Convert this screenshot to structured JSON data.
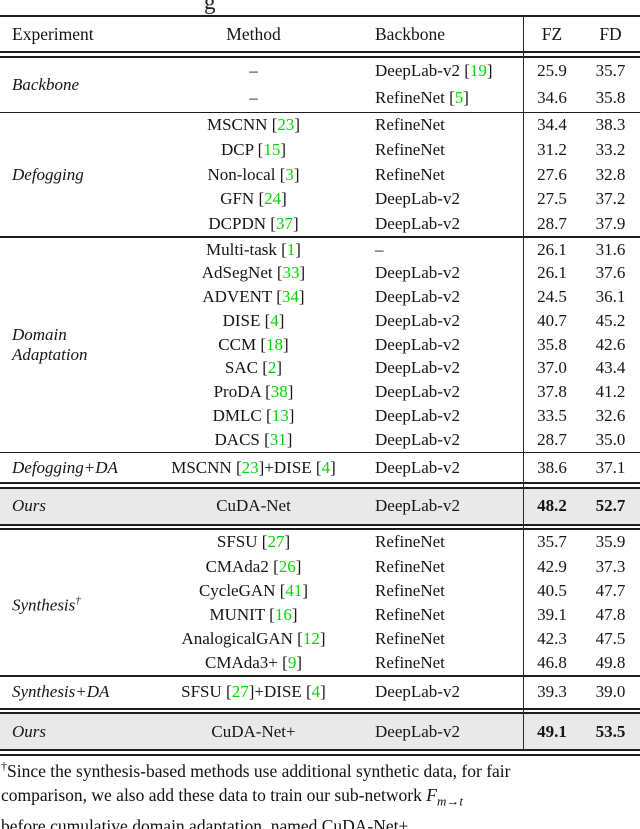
{
  "page": {
    "caption_fragment": "g"
  },
  "colors": {
    "cite_green": "#00d800",
    "highlight_row_bg": "#e9e9e9"
  },
  "table": {
    "header": {
      "experiment": "Experiment",
      "method": "Method",
      "backbone": "Backbone",
      "fz": "FZ",
      "fd": "FD"
    },
    "sections": [
      {
        "experiment": "Backbone",
        "rows": [
          {
            "method": "–",
            "backbone": "DeepLab-v2 [19]",
            "fz": "25.9",
            "fd": "35.7"
          },
          {
            "method": "–",
            "backbone": "RefineNet [5]",
            "fz": "34.6",
            "fd": "35.8"
          }
        ]
      },
      {
        "experiment": "Defogging",
        "rows": [
          {
            "method": "MSCNN [23]",
            "backbone": "RefineNet",
            "fz": "34.4",
            "fd": "38.3"
          },
          {
            "method": "DCP [15]",
            "backbone": "RefineNet",
            "fz": "31.2",
            "fd": "33.2"
          },
          {
            "method": "Non-local [3]",
            "backbone": "RefineNet",
            "fz": "27.6",
            "fd": "32.8"
          },
          {
            "method": "GFN [24]",
            "backbone": "DeepLab-v2",
            "fz": "27.5",
            "fd": "37.2"
          },
          {
            "method": "DCPDN [37]",
            "backbone": "DeepLab-v2",
            "fz": "28.7",
            "fd": "37.9"
          }
        ]
      },
      {
        "experiment": "Domain Adaptation",
        "experiment_lines": [
          "Domain",
          "Adaptation"
        ],
        "rows": [
          {
            "method": "Multi-task [1]",
            "backbone": "–",
            "fz": "26.1",
            "fd": "31.6"
          },
          {
            "method": "AdSegNet [33]",
            "backbone": "DeepLab-v2",
            "fz": "26.1",
            "fd": "37.6"
          },
          {
            "method": "ADVENT [34]",
            "backbone": "DeepLab-v2",
            "fz": "24.5",
            "fd": "36.1"
          },
          {
            "method": "DISE [4]",
            "backbone": "DeepLab-v2",
            "fz": "40.7",
            "fd": "45.2"
          },
          {
            "method": "CCM [18]",
            "backbone": "DeepLab-v2",
            "fz": "35.8",
            "fd": "42.6"
          },
          {
            "method": "SAC [2]",
            "backbone": "DeepLab-v2",
            "fz": "37.0",
            "fd": "43.4"
          },
          {
            "method": "ProDA [38]",
            "backbone": "DeepLab-v2",
            "fz": "37.8",
            "fd": "41.2"
          },
          {
            "method": "DMLC [13]",
            "backbone": "DeepLab-v2",
            "fz": "33.5",
            "fd": "32.6"
          },
          {
            "method": "DACS [31]",
            "backbone": "DeepLab-v2",
            "fz": "28.7",
            "fd": "35.0"
          }
        ]
      },
      {
        "experiment": "Defogging+DA",
        "rows": [
          {
            "method": "MSCNN [23]+DISE [4]",
            "backbone": "DeepLab-v2",
            "fz": "38.6",
            "fd": "37.1"
          }
        ]
      },
      {
        "experiment": "Ours",
        "highlight": true,
        "rows": [
          {
            "method": "CuDA-Net",
            "backbone": "DeepLab-v2",
            "fz": "48.2",
            "fd": "52.7",
            "bold": true
          }
        ]
      },
      {
        "experiment": "Synthesis",
        "experiment_sup": "†",
        "rows": [
          {
            "method": "SFSU [27]",
            "backbone": "RefineNet",
            "fz": "35.7",
            "fd": "35.9"
          },
          {
            "method": "CMAda2 [26]",
            "backbone": "RefineNet",
            "fz": "42.9",
            "fd": "37.3"
          },
          {
            "method": "CycleGAN [41]",
            "backbone": "RefineNet",
            "fz": "40.5",
            "fd": "47.7"
          },
          {
            "method": "MUNIT [16]",
            "backbone": "RefineNet",
            "fz": "39.1",
            "fd": "47.8"
          },
          {
            "method": "AnalogicalGAN [12]",
            "backbone": "RefineNet",
            "fz": "42.3",
            "fd": "47.5"
          },
          {
            "method": "CMAda3+ [9]",
            "backbone": "RefineNet",
            "fz": "46.8",
            "fd": "49.8"
          }
        ]
      },
      {
        "experiment": "Synthesis+DA",
        "rows": [
          {
            "method": "SFSU [27]+DISE [4]",
            "backbone": "DeepLab-v2",
            "fz": "39.3",
            "fd": "39.0"
          }
        ]
      },
      {
        "experiment": "Ours",
        "highlight": true,
        "rows": [
          {
            "method": "CuDA-Net+",
            "backbone": "DeepLab-v2",
            "fz": "49.1",
            "fd": "53.5",
            "bold": true
          }
        ]
      }
    ]
  },
  "footnote": {
    "dagger": "†",
    "line1": "Since the synthesis-based methods use additional synthetic data, for fair",
    "line2_pre": "comparison, we also add these data to train our sub-network ",
    "math_base": "F",
    "math_sub": "m→t",
    "line3": "before cumulative domain adaptation, named CuDA-Net+."
  }
}
